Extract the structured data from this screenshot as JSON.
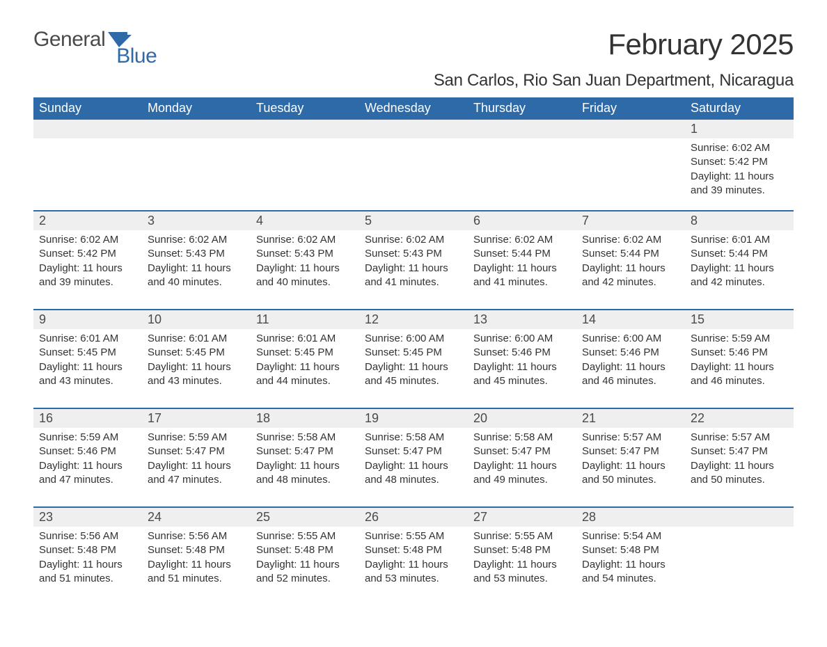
{
  "logo": {
    "text1": "General",
    "text2": "Blue",
    "flag_color": "#2f6aa8"
  },
  "title": "February 2025",
  "location": "San Carlos, Rio San Juan Department, Nicaragua",
  "colors": {
    "header_bg": "#2f6aa8",
    "header_text": "#ffffff",
    "daynum_bg": "#efefef",
    "body_text": "#333333",
    "rule": "#2f6aa8"
  },
  "weekdays": [
    "Sunday",
    "Monday",
    "Tuesday",
    "Wednesday",
    "Thursday",
    "Friday",
    "Saturday"
  ],
  "weeks": [
    [
      null,
      null,
      null,
      null,
      null,
      null,
      {
        "n": "1",
        "sunrise": "Sunrise: 6:02 AM",
        "sunset": "Sunset: 5:42 PM",
        "daylight": "Daylight: 11 hours and 39 minutes."
      }
    ],
    [
      {
        "n": "2",
        "sunrise": "Sunrise: 6:02 AM",
        "sunset": "Sunset: 5:42 PM",
        "daylight": "Daylight: 11 hours and 39 minutes."
      },
      {
        "n": "3",
        "sunrise": "Sunrise: 6:02 AM",
        "sunset": "Sunset: 5:43 PM",
        "daylight": "Daylight: 11 hours and 40 minutes."
      },
      {
        "n": "4",
        "sunrise": "Sunrise: 6:02 AM",
        "sunset": "Sunset: 5:43 PM",
        "daylight": "Daylight: 11 hours and 40 minutes."
      },
      {
        "n": "5",
        "sunrise": "Sunrise: 6:02 AM",
        "sunset": "Sunset: 5:43 PM",
        "daylight": "Daylight: 11 hours and 41 minutes."
      },
      {
        "n": "6",
        "sunrise": "Sunrise: 6:02 AM",
        "sunset": "Sunset: 5:44 PM",
        "daylight": "Daylight: 11 hours and 41 minutes."
      },
      {
        "n": "7",
        "sunrise": "Sunrise: 6:02 AM",
        "sunset": "Sunset: 5:44 PM",
        "daylight": "Daylight: 11 hours and 42 minutes."
      },
      {
        "n": "8",
        "sunrise": "Sunrise: 6:01 AM",
        "sunset": "Sunset: 5:44 PM",
        "daylight": "Daylight: 11 hours and 42 minutes."
      }
    ],
    [
      {
        "n": "9",
        "sunrise": "Sunrise: 6:01 AM",
        "sunset": "Sunset: 5:45 PM",
        "daylight": "Daylight: 11 hours and 43 minutes."
      },
      {
        "n": "10",
        "sunrise": "Sunrise: 6:01 AM",
        "sunset": "Sunset: 5:45 PM",
        "daylight": "Daylight: 11 hours and 43 minutes."
      },
      {
        "n": "11",
        "sunrise": "Sunrise: 6:01 AM",
        "sunset": "Sunset: 5:45 PM",
        "daylight": "Daylight: 11 hours and 44 minutes."
      },
      {
        "n": "12",
        "sunrise": "Sunrise: 6:00 AM",
        "sunset": "Sunset: 5:45 PM",
        "daylight": "Daylight: 11 hours and 45 minutes."
      },
      {
        "n": "13",
        "sunrise": "Sunrise: 6:00 AM",
        "sunset": "Sunset: 5:46 PM",
        "daylight": "Daylight: 11 hours and 45 minutes."
      },
      {
        "n": "14",
        "sunrise": "Sunrise: 6:00 AM",
        "sunset": "Sunset: 5:46 PM",
        "daylight": "Daylight: 11 hours and 46 minutes."
      },
      {
        "n": "15",
        "sunrise": "Sunrise: 5:59 AM",
        "sunset": "Sunset: 5:46 PM",
        "daylight": "Daylight: 11 hours and 46 minutes."
      }
    ],
    [
      {
        "n": "16",
        "sunrise": "Sunrise: 5:59 AM",
        "sunset": "Sunset: 5:46 PM",
        "daylight": "Daylight: 11 hours and 47 minutes."
      },
      {
        "n": "17",
        "sunrise": "Sunrise: 5:59 AM",
        "sunset": "Sunset: 5:47 PM",
        "daylight": "Daylight: 11 hours and 47 minutes."
      },
      {
        "n": "18",
        "sunrise": "Sunrise: 5:58 AM",
        "sunset": "Sunset: 5:47 PM",
        "daylight": "Daylight: 11 hours and 48 minutes."
      },
      {
        "n": "19",
        "sunrise": "Sunrise: 5:58 AM",
        "sunset": "Sunset: 5:47 PM",
        "daylight": "Daylight: 11 hours and 48 minutes."
      },
      {
        "n": "20",
        "sunrise": "Sunrise: 5:58 AM",
        "sunset": "Sunset: 5:47 PM",
        "daylight": "Daylight: 11 hours and 49 minutes."
      },
      {
        "n": "21",
        "sunrise": "Sunrise: 5:57 AM",
        "sunset": "Sunset: 5:47 PM",
        "daylight": "Daylight: 11 hours and 50 minutes."
      },
      {
        "n": "22",
        "sunrise": "Sunrise: 5:57 AM",
        "sunset": "Sunset: 5:47 PM",
        "daylight": "Daylight: 11 hours and 50 minutes."
      }
    ],
    [
      {
        "n": "23",
        "sunrise": "Sunrise: 5:56 AM",
        "sunset": "Sunset: 5:48 PM",
        "daylight": "Daylight: 11 hours and 51 minutes."
      },
      {
        "n": "24",
        "sunrise": "Sunrise: 5:56 AM",
        "sunset": "Sunset: 5:48 PM",
        "daylight": "Daylight: 11 hours and 51 minutes."
      },
      {
        "n": "25",
        "sunrise": "Sunrise: 5:55 AM",
        "sunset": "Sunset: 5:48 PM",
        "daylight": "Daylight: 11 hours and 52 minutes."
      },
      {
        "n": "26",
        "sunrise": "Sunrise: 5:55 AM",
        "sunset": "Sunset: 5:48 PM",
        "daylight": "Daylight: 11 hours and 53 minutes."
      },
      {
        "n": "27",
        "sunrise": "Sunrise: 5:55 AM",
        "sunset": "Sunset: 5:48 PM",
        "daylight": "Daylight: 11 hours and 53 minutes."
      },
      {
        "n": "28",
        "sunrise": "Sunrise: 5:54 AM",
        "sunset": "Sunset: 5:48 PM",
        "daylight": "Daylight: 11 hours and 54 minutes."
      },
      null
    ]
  ]
}
